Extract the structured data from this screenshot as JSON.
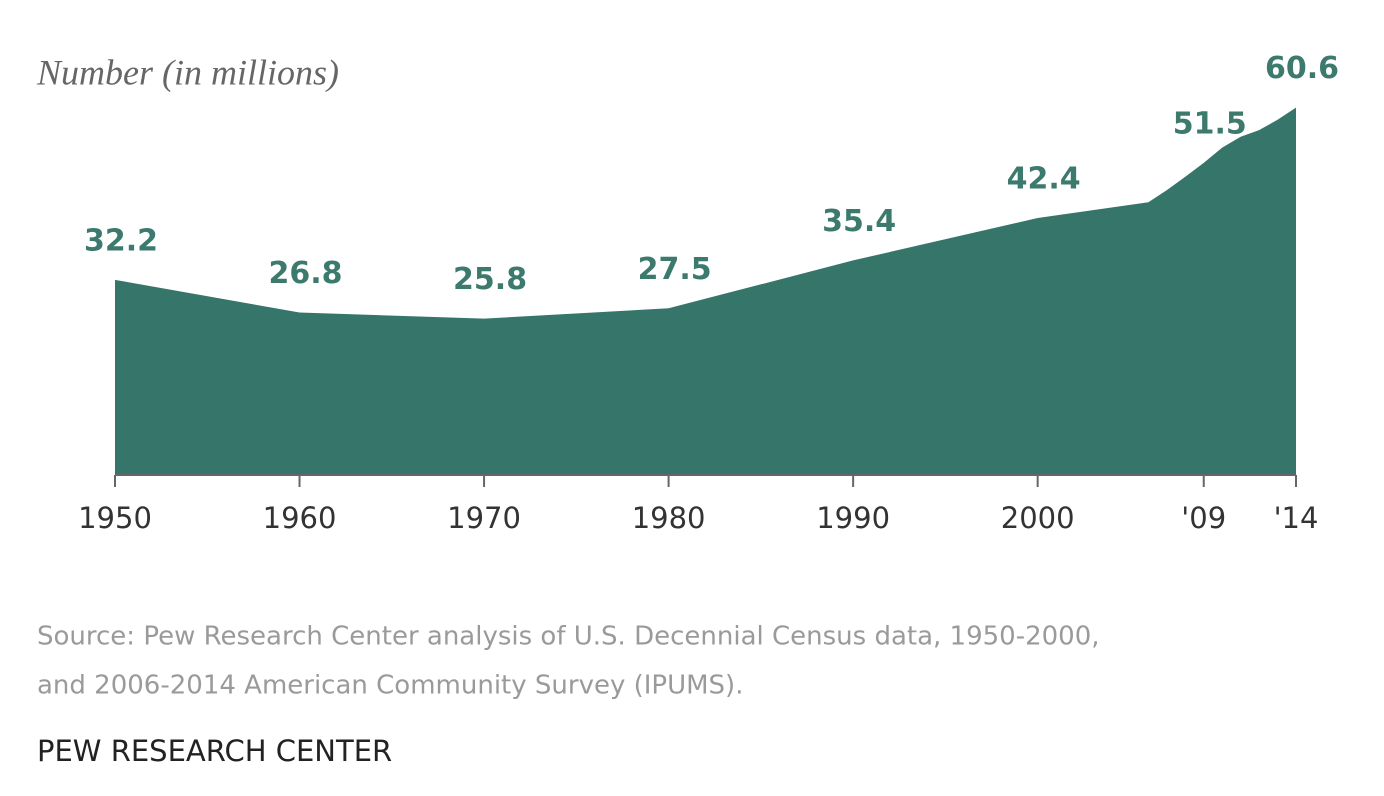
{
  "chart_data": {
    "type": "area",
    "subtitle": "Number (in millions)",
    "x": [
      1950,
      1960,
      1970,
      1980,
      1990,
      2000,
      2006,
      2007,
      2008,
      2009,
      2010,
      2011,
      2012,
      2013,
      2014
    ],
    "values": [
      32.2,
      26.8,
      25.8,
      27.5,
      35.4,
      42.4,
      45.0,
      47.0,
      49.2,
      51.5,
      54.0,
      55.8,
      56.9,
      58.6,
      60.6
    ],
    "color": "#35756a",
    "label_color": "#3d7a6e",
    "xlim": [
      1950,
      2014
    ],
    "xticks": [
      1950,
      1960,
      1970,
      1980,
      1990,
      2000,
      {
        "value": 2009,
        "label": "'09"
      },
      {
        "value": 2014,
        "label": "'14"
      }
    ],
    "ylim": [
      0,
      65
    ],
    "source": [
      "Source: Pew Research Center analysis of U.S. Decennial Census data, 1950-2000,",
      "and 2006-2014 American Community Survey (IPUMS)."
    ],
    "credit": "PEW RESEARCH CENTER"
  }
}
